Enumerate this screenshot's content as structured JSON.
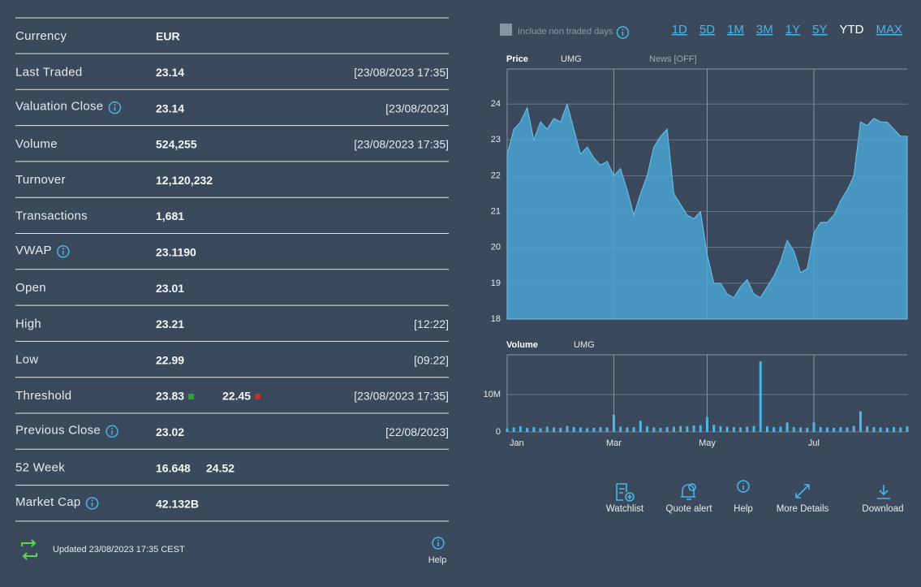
{
  "table": {
    "rows": [
      {
        "label": "Currency",
        "value": "EUR"
      },
      {
        "label": "Last Traded",
        "value": "23.14",
        "time": "[23/08/2023 17:35]"
      },
      {
        "label": "Valuation Close",
        "info": true,
        "value": "23.14",
        "time": "[23/08/2023]"
      },
      {
        "label": "Volume",
        "value": "524,255",
        "time": "[23/08/2023 17:35]"
      },
      {
        "label": "Turnover",
        "value": "12,120,232"
      },
      {
        "label": "Transactions",
        "value": "1,681"
      },
      {
        "label": "VWAP",
        "info": true,
        "value": "23.1190"
      },
      {
        "label": "Open",
        "value": "23.01"
      },
      {
        "label": "High",
        "value": "23.21",
        "time": "[12:22]"
      },
      {
        "label": "Low",
        "value": "22.99",
        "time": "[09:22]"
      },
      {
        "label": "Threshold",
        "value": "23.83",
        "value2": "22.45",
        "time": "[23/08/2023 17:35]"
      },
      {
        "label": "Previous Close",
        "info": true,
        "value": "23.02",
        "time": "[22/08/2023]"
      },
      {
        "label": "52 Week",
        "value": "16.648",
        "value2": "24.52"
      },
      {
        "label": "Market Cap",
        "info": true,
        "value": "42.132B"
      }
    ]
  },
  "footer": {
    "updated": "Updated 23/08/2023 17:35 CEST",
    "help": "Help"
  },
  "toolbar": {
    "checkbox": "Include non traded days",
    "ranges": [
      "1D",
      "5D",
      "1M",
      "3M",
      "1Y",
      "5Y",
      "YTD",
      "MAX"
    ],
    "selected": 6
  },
  "actions": [
    "Watchlist",
    "Quote alert",
    "Help",
    "More Details",
    "Download"
  ],
  "chart_data": [
    {
      "type": "area",
      "title": "Price",
      "subtitle": "UMG",
      "annotation": "News [OFF]",
      "color": "#4aa3d4",
      "values": [
        22.6,
        23.3,
        23.5,
        23.9,
        23.0,
        23.5,
        23.3,
        23.6,
        23.5,
        24.0,
        23.3,
        22.6,
        22.8,
        22.5,
        22.3,
        22.4,
        22.0,
        22.2,
        21.6,
        20.9,
        21.5,
        22.0,
        22.8,
        23.1,
        23.3,
        21.5,
        21.2,
        20.9,
        20.8,
        21.0,
        19.8,
        19.0,
        19.0,
        18.7,
        18.6,
        18.9,
        19.1,
        18.7,
        18.6,
        18.9,
        19.2,
        19.6,
        20.2,
        19.9,
        19.3,
        19.4,
        20.4,
        20.7,
        20.7,
        20.9,
        21.3,
        21.6,
        22.0,
        23.5,
        23.4,
        23.6,
        23.5,
        23.5,
        23.3,
        23.1,
        23.1
      ],
      "ylim": [
        18,
        25
      ],
      "yticks": [
        18,
        19,
        20,
        21,
        22,
        23,
        24
      ],
      "grid": true
    },
    {
      "type": "bar",
      "title": "Volume",
      "subtitle": "UMG",
      "color": "#4fb4e6",
      "categories": [
        "Jan",
        null,
        null,
        null,
        null,
        null,
        null,
        null,
        null,
        null,
        null,
        null,
        null,
        null,
        null,
        null,
        "Mar",
        null,
        null,
        null,
        null,
        null,
        null,
        null,
        null,
        null,
        null,
        null,
        null,
        null,
        "May",
        null,
        null,
        null,
        null,
        null,
        null,
        null,
        null,
        null,
        null,
        null,
        null,
        null,
        null,
        null,
        "Jul",
        null,
        null,
        null,
        null,
        null,
        null,
        null,
        null,
        null,
        null,
        null,
        null,
        null,
        null
      ],
      "values": [
        1000000,
        1200000,
        1500000,
        1100000,
        1300000,
        1000000,
        1400000,
        1200000,
        1100000,
        1600000,
        1300000,
        1200000,
        1000000,
        1100000,
        1300000,
        1200000,
        4600000,
        1400000,
        1200000,
        1300000,
        3000000,
        1500000,
        1200000,
        1100000,
        1300000,
        1400000,
        1600000,
        1500000,
        1700000,
        1800000,
        4000000,
        1900000,
        1500000,
        1400000,
        1300000,
        1200000,
        1400000,
        1600000,
        18900000,
        1500000,
        1300000,
        1400000,
        2500000,
        1300000,
        1200000,
        1100000,
        2500000,
        1300000,
        1200000,
        1100000,
        1300000,
        1200000,
        1600000,
        5500000,
        1500000,
        1300000,
        1200000,
        1100000,
        1300000,
        1200000,
        1500000
      ],
      "ylim": [
        0,
        20000000
      ],
      "yticks": [
        0,
        {
          "value": 10000000,
          "label": "10M"
        }
      ],
      "grid": true
    }
  ]
}
